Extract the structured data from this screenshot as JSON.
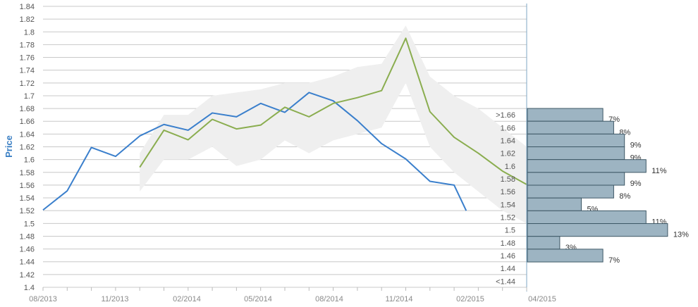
{
  "chart_data": {
    "type": "line",
    "title": "",
    "xlabel": "",
    "ylabel": "Price",
    "ylim": [
      1.4,
      1.84
    ],
    "y_ticks": [
      "1.4",
      "1.42",
      "1.44",
      "1.46",
      "1.48",
      "1.5",
      "1.52",
      "1.54",
      "1.56",
      "1.58",
      "1.6",
      "1.62",
      "1.64",
      "1.66",
      "1.68",
      "1.7",
      "1.72",
      "1.74",
      "1.76",
      "1.78",
      "1.8",
      "1.82",
      "1.84"
    ],
    "x_ticks": [
      "08/2013",
      "11/2013",
      "02/2014",
      "05/2014",
      "08/2014",
      "11/2014",
      "02/2015",
      "04/2015"
    ],
    "x_range_months": [
      0,
      20
    ],
    "grid": true,
    "colors": {
      "series_blue": "#3a7fcc",
      "series_green": "#8aad4f",
      "band": "#efefef",
      "bars_fill": "#9db4c2",
      "bars_stroke": "#3e5866",
      "grid": "#c8c8c8"
    },
    "series": [
      {
        "x": [
          0,
          1,
          2,
          3,
          4,
          5,
          6,
          7,
          8,
          9,
          10,
          11,
          12,
          13,
          14,
          15,
          16,
          17,
          17.5
        ],
        "values": [
          1.521,
          1.551,
          1.619,
          1.605,
          1.637,
          1.655,
          1.646,
          1.673,
          1.667,
          1.688,
          1.674,
          1.705,
          1.692,
          1.661,
          1.625,
          1.601,
          1.566,
          1.56,
          1.52
        ]
      },
      {
        "x": [
          4,
          5,
          6,
          7,
          8,
          9,
          10,
          11,
          12,
          13,
          14,
          15,
          16,
          17,
          18,
          19,
          20
        ],
        "values": [
          1.588,
          1.646,
          1.631,
          1.663,
          1.648,
          1.654,
          1.682,
          1.667,
          1.688,
          1.697,
          1.708,
          1.79,
          1.675,
          1.635,
          1.61,
          1.582,
          1.561
        ]
      }
    ],
    "band": {
      "x": [
        4,
        5,
        6,
        7,
        8,
        9,
        10,
        11,
        12,
        13,
        14,
        15,
        16,
        17,
        18,
        19,
        20
      ],
      "upper": [
        1.61,
        1.67,
        1.67,
        1.7,
        1.705,
        1.71,
        1.72,
        1.72,
        1.73,
        1.745,
        1.75,
        1.81,
        1.73,
        1.7,
        1.68,
        1.65,
        1.62
      ],
      "lower": [
        1.55,
        1.6,
        1.6,
        1.62,
        1.59,
        1.6,
        1.63,
        1.61,
        1.63,
        1.64,
        1.65,
        1.72,
        1.62,
        1.58,
        1.55,
        1.52,
        1.5
      ]
    },
    "distribution": {
      "categories": [
        ">1.66",
        "1.66",
        "1.64",
        "1.62",
        "1.6",
        "1.58",
        "1.56",
        "1.54",
        "1.52",
        "1.5",
        "1.48",
        "1.46",
        "1.44",
        "<1.44"
      ],
      "values": [
        7,
        8,
        9,
        9,
        11,
        9,
        8,
        5,
        11,
        13,
        3,
        7,
        null,
        null
      ],
      "labels": [
        "7%",
        "8%",
        "9%",
        "9%",
        "11%",
        "9%",
        "8%",
        "5%",
        "11%",
        "13%",
        "3%",
        "7%",
        "",
        ""
      ]
    }
  }
}
